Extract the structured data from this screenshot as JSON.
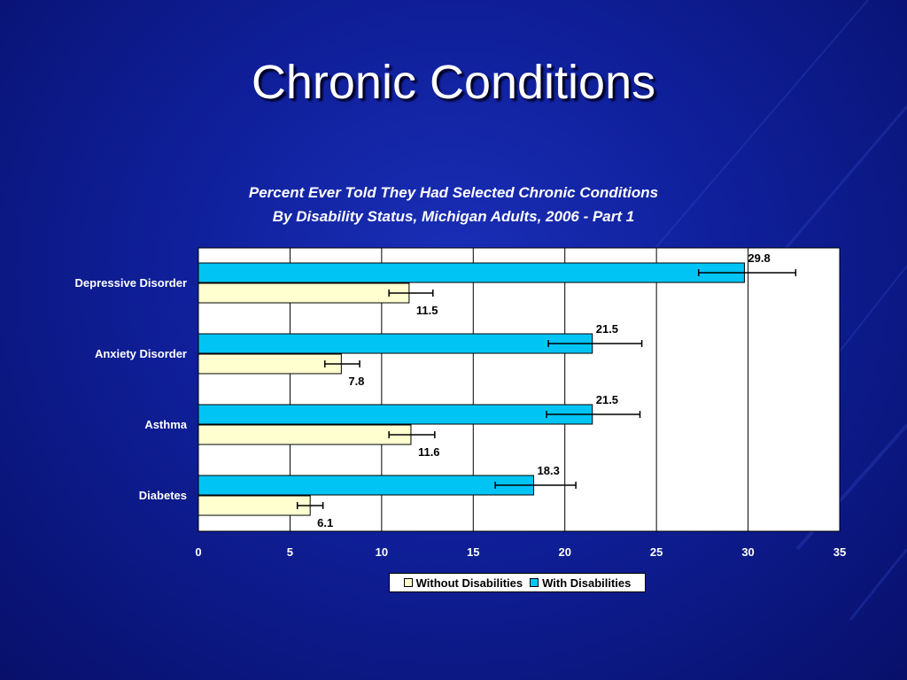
{
  "slide": {
    "title": "Chronic Conditions"
  },
  "colors": {
    "with": "#00c4f4",
    "without": "#ffffd0",
    "background": "#0f1f99"
  },
  "chart_data": {
    "type": "bar",
    "orientation": "horizontal",
    "title": "Percent Ever Told They Had Selected Chronic Conditions",
    "subtitle": "By Disability Status, Michigan Adults, 2006 - Part 1",
    "categories": [
      "Depressive Disorder",
      "Anxiety Disorder",
      "Asthma",
      "Diabetes"
    ],
    "series": [
      {
        "name": "With Disabilities",
        "values": [
          29.8,
          21.5,
          21.5,
          18.3
        ],
        "labels": [
          "29.8",
          "21.5",
          "21.5",
          "18.3"
        ],
        "error_low": [
          27.3,
          19.1,
          19.0,
          16.2
        ],
        "error_high": [
          32.6,
          24.2,
          24.1,
          20.6
        ]
      },
      {
        "name": "Without Disabilities",
        "values": [
          11.5,
          7.8,
          11.6,
          6.1
        ],
        "labels": [
          "11.5",
          "7.8",
          "11.6",
          "6.1"
        ],
        "error_low": [
          10.4,
          6.9,
          10.4,
          5.4
        ],
        "error_high": [
          12.8,
          8.8,
          12.9,
          6.8
        ]
      }
    ],
    "xlim": [
      0,
      35
    ],
    "xticks": [
      "0",
      "5",
      "10",
      "15",
      "20",
      "25",
      "30",
      "35"
    ],
    "grid": true,
    "legend": "bottom",
    "legend_entries": [
      "Without Disabilities",
      "With Disabilities"
    ]
  }
}
